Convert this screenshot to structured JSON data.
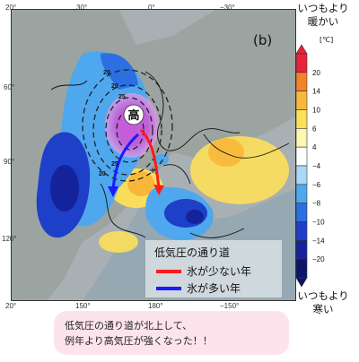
{
  "map": {
    "panel_label": "(b)",
    "high_label": "高",
    "lon_labels": [
      "30°",
      "0°",
      "−30°",
      "150°",
      "180°",
      "−150°"
    ],
    "lon_corner_labels": [
      "20°",
      "20°",
      "20°",
      "20°"
    ],
    "lat_labels": [
      "60°",
      "90°",
      "120°"
    ],
    "contour_labels": [
      "20",
      "20",
      "25",
      "20",
      "25"
    ],
    "legend": {
      "title": "低気圧の通り道",
      "items": [
        {
          "label": "氷が少ない年",
          "color": "#ff1a1a"
        },
        {
          "label": "氷が多い年",
          "color": "#1a1aff"
        }
      ]
    }
  },
  "colorbar": {
    "title_top": [
      "いつもより",
      "暖かい"
    ],
    "title_bottom": [
      "いつもより",
      "寒い"
    ],
    "unit": "[℃]",
    "ticks": [
      "20",
      "14",
      "10",
      "6",
      "4",
      "−4",
      "−6",
      "−8",
      "−10",
      "−14",
      "−20"
    ],
    "colors": [
      "#e8223a",
      "#f5812a",
      "#f9b73a",
      "#fde05a",
      "#fff6b0",
      "#ffffff",
      "#a8d9f5",
      "#4fa7ee",
      "#2b6fe0",
      "#1e3fc8",
      "#14239c",
      "#0b1468"
    ]
  },
  "caption": {
    "lines": [
      "低気圧の通り道が北上して、",
      "例年より高気圧が強くなった！！"
    ]
  }
}
